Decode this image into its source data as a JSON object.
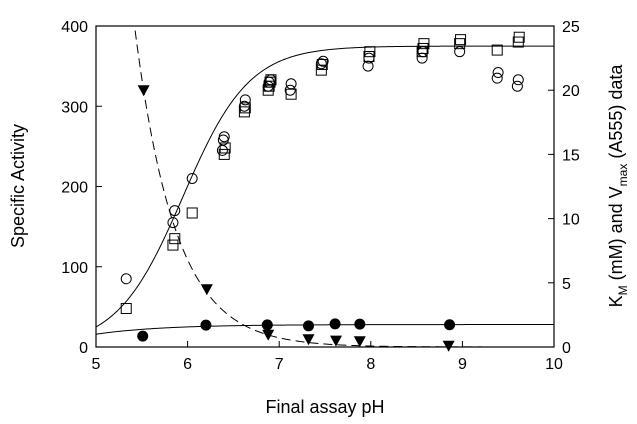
{
  "chart_data": {
    "type": "scatter",
    "xlabel": "Final assay pH",
    "ylabel_left": "Specific Activity",
    "ylabel_right": {
      "k": "K",
      "k_sub": "M",
      "mid": " (mM) and V",
      "v_sub": "max",
      "end": " (A555) data"
    },
    "xlim": [
      5,
      10
    ],
    "ylim_left": [
      0,
      400
    ],
    "ylim_right": [
      0,
      25
    ],
    "xticks": [
      5,
      6,
      7,
      8,
      9,
      10
    ],
    "yticks_left": [
      0,
      100,
      200,
      300,
      400
    ],
    "yticks_right": [
      0,
      5,
      10,
      15,
      20,
      25
    ],
    "grid": false,
    "legend": "none",
    "series": [
      {
        "marker": "circle-open",
        "axis": "left",
        "points": [
          [
            5.33,
            85
          ],
          [
            5.84,
            155
          ],
          [
            5.86,
            170
          ],
          [
            6.05,
            210
          ],
          [
            6.38,
            245
          ],
          [
            6.39,
            258
          ],
          [
            6.4,
            262
          ],
          [
            6.62,
            300
          ],
          [
            6.63,
            308
          ],
          [
            6.88,
            325
          ],
          [
            6.89,
            330
          ],
          [
            6.91,
            333
          ],
          [
            7.12,
            320
          ],
          [
            7.13,
            328
          ],
          [
            7.46,
            353
          ],
          [
            7.48,
            356
          ],
          [
            7.97,
            350
          ],
          [
            7.98,
            360
          ],
          [
            8.56,
            360
          ],
          [
            8.57,
            368
          ],
          [
            8.97,
            368
          ],
          [
            9.38,
            335
          ],
          [
            9.39,
            342
          ],
          [
            9.6,
            325
          ],
          [
            9.61,
            333
          ]
        ]
      },
      {
        "marker": "square-open",
        "axis": "left",
        "points": [
          [
            5.33,
            48
          ],
          [
            5.84,
            127
          ],
          [
            5.86,
            135
          ],
          [
            6.05,
            167
          ],
          [
            6.4,
            240
          ],
          [
            6.41,
            248
          ],
          [
            6.62,
            293
          ],
          [
            6.63,
            298
          ],
          [
            6.88,
            320
          ],
          [
            6.89,
            325
          ],
          [
            6.9,
            330
          ],
          [
            6.91,
            333
          ],
          [
            7.13,
            315
          ],
          [
            7.46,
            345
          ],
          [
            7.47,
            352
          ],
          [
            7.98,
            362
          ],
          [
            7.99,
            368
          ],
          [
            8.56,
            368
          ],
          [
            8.57,
            372
          ],
          [
            8.58,
            378
          ],
          [
            8.97,
            378
          ],
          [
            8.98,
            383
          ],
          [
            9.38,
            370
          ],
          [
            9.61,
            380
          ],
          [
            9.62,
            386
          ]
        ]
      },
      {
        "marker": "triangle-down-filled",
        "axis": "right",
        "points": [
          [
            5.52,
            20.0
          ],
          [
            6.21,
            4.5
          ],
          [
            6.88,
            0.95
          ],
          [
            7.32,
            0.6
          ],
          [
            7.62,
            0.5
          ],
          [
            7.88,
            0.45
          ],
          [
            8.85,
            0.1
          ]
        ]
      },
      {
        "marker": "circle-filled",
        "axis": "right",
        "points": [
          [
            5.51,
            0.85
          ],
          [
            6.2,
            1.7
          ],
          [
            6.87,
            1.72
          ],
          [
            7.32,
            1.65
          ],
          [
            7.61,
            1.8
          ],
          [
            7.88,
            1.78
          ],
          [
            8.86,
            1.73
          ]
        ]
      }
    ],
    "curves": [
      {
        "style": "solid",
        "axis": "left",
        "model": "sigmoid",
        "min": 0,
        "max": 375,
        "mid": 5.95,
        "slope": 0.36
      },
      {
        "style": "dashed",
        "axis": "right",
        "model": "exponential-decay",
        "amplitude": 20.0,
        "x0": 5.52,
        "k": 2.25
      },
      {
        "style": "solid",
        "axis": "right",
        "model": "saturation",
        "max": 1.75,
        "x0": 4.4,
        "k": 1.4
      }
    ]
  }
}
